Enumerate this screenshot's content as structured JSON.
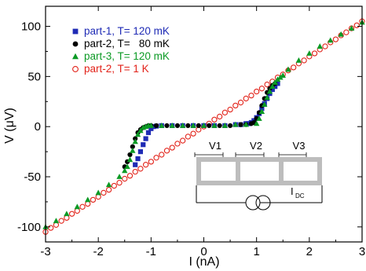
{
  "chart_data": {
    "type": "scatter",
    "title": "",
    "xlabel": "I (nA)",
    "ylabel": "V (μV)",
    "xlim": [
      -3,
      3
    ],
    "ylim": [
      -115,
      120
    ],
    "xticks": [
      -3,
      -2,
      -1,
      0,
      1,
      2,
      3
    ],
    "yticks": [
      -100,
      -50,
      0,
      50,
      100
    ],
    "xtick_labels": [
      "-3",
      "-2",
      "-1",
      "0",
      "1",
      "2",
      "3"
    ],
    "ytick_labels": [
      "-100",
      "-50",
      "0",
      "50",
      "100"
    ],
    "grid": false,
    "legend_position": "top-left",
    "series": [
      {
        "name": "part-1, T= 120 mK",
        "marker": "square",
        "color": "#1f2bb5",
        "x": [
          -1.3,
          -1.25,
          -1.2,
          -1.15,
          -1.1,
          -1.05,
          -1.0,
          -0.95,
          -0.9,
          -0.8,
          -0.6,
          -0.4,
          -0.2,
          0.0,
          0.2,
          0.4,
          0.6,
          0.7,
          0.8,
          0.85,
          0.9,
          0.95,
          1.0,
          1.05,
          1.1,
          1.15,
          1.2,
          1.25,
          1.3,
          1.35,
          1.4
        ],
        "y": [
          -38,
          -32,
          -25,
          -18,
          -12,
          -6,
          -2,
          0,
          0.5,
          1,
          1,
          1,
          1,
          1,
          1,
          1,
          2,
          2,
          3,
          3,
          4,
          6,
          9,
          13,
          18,
          23,
          28,
          33,
          37,
          40,
          43
        ]
      },
      {
        "name": "part-2, T=   80 mK",
        "marker": "circle",
        "color": "#000000",
        "x": [
          -1.5,
          -1.45,
          -1.4,
          -1.35,
          -1.3,
          -1.25,
          -1.2,
          -1.15,
          -1.1,
          -1.05,
          -1.0,
          -0.9,
          -0.7,
          -0.5,
          -0.3,
          -0.1,
          0.1,
          0.3,
          0.5,
          0.7,
          0.8,
          0.9,
          0.95,
          1.0,
          1.05,
          1.1,
          1.15,
          1.2,
          1.25,
          1.3,
          1.35
        ],
        "y": [
          -40,
          -35,
          -28,
          -20,
          -12,
          -6,
          -3,
          -1,
          0,
          1,
          1,
          1,
          1,
          1,
          1,
          1,
          1,
          1,
          1,
          2,
          2,
          3,
          4,
          8,
          14,
          21,
          28,
          34,
          38,
          41,
          43
        ]
      },
      {
        "name": "part-3, T= 120 mK",
        "marker": "triangle",
        "color": "#0c9a25",
        "x": [
          -3.0,
          -2.8,
          -2.6,
          -2.4,
          -2.2,
          -2.0,
          -1.8,
          -1.6,
          -1.5,
          -1.45,
          -1.4,
          -1.35,
          -1.3,
          -1.25,
          -1.2,
          -1.15,
          -1.1,
          -1.05,
          -1.0,
          -0.8,
          -0.6,
          -0.4,
          -0.2,
          0.0,
          0.2,
          0.4,
          0.6,
          0.8,
          1.0,
          1.05,
          1.1,
          1.15,
          1.2,
          1.25,
          1.3,
          1.35,
          1.4,
          1.45,
          1.5,
          1.6,
          1.8,
          2.0,
          2.2,
          2.4,
          2.6,
          2.8,
          3.0
        ],
        "y": [
          -100,
          -94,
          -87,
          -80,
          -73,
          -66,
          -58,
          -50,
          -44,
          -40,
          -33,
          -24,
          -15,
          -8,
          -4,
          -1,
          0,
          1,
          1,
          1,
          1,
          1,
          1,
          1,
          1,
          1,
          2,
          2,
          3,
          8,
          15,
          22,
          29,
          35,
          40,
          44,
          47,
          49,
          51,
          57,
          66,
          73,
          80,
          86,
          92,
          98,
          104
        ]
      },
      {
        "name": "part-2, T= 1 K",
        "marker": "open-circle",
        "color": "#e2231a",
        "x": [
          -3.0,
          -2.9,
          -2.8,
          -2.7,
          -2.6,
          -2.5,
          -2.4,
          -2.3,
          -2.2,
          -2.1,
          -2.0,
          -1.9,
          -1.8,
          -1.7,
          -1.6,
          -1.5,
          -1.4,
          -1.3,
          -1.2,
          -1.1,
          -1.0,
          -0.9,
          -0.8,
          -0.7,
          -0.6,
          -0.5,
          -0.4,
          -0.3,
          -0.2,
          -0.1,
          0.0,
          0.1,
          0.2,
          0.3,
          0.4,
          0.5,
          0.6,
          0.7,
          0.8,
          0.9,
          1.0,
          1.1,
          1.2,
          1.3,
          1.4,
          1.5,
          1.6,
          1.7,
          1.8,
          1.9,
          2.0,
          2.1,
          2.2,
          2.3,
          2.4,
          2.5,
          2.6,
          2.7,
          2.8,
          2.9,
          3.0
        ],
        "y": [
          -105,
          -101,
          -98,
          -94,
          -91,
          -87,
          -84,
          -80,
          -77,
          -73,
          -70,
          -66,
          -63,
          -59,
          -56,
          -52,
          -49,
          -45,
          -42,
          -38,
          -35,
          -31,
          -28,
          -24,
          -21,
          -17,
          -14,
          -10,
          -7,
          -3,
          0,
          3,
          7,
          10,
          14,
          17,
          21,
          24,
          28,
          31,
          35,
          38,
          42,
          45,
          49,
          52,
          56,
          59,
          63,
          66,
          70,
          73,
          77,
          80,
          84,
          87,
          91,
          94,
          98,
          101,
          105
        ]
      }
    ]
  },
  "inset": {
    "labels": [
      "V1",
      "V2",
      "V3"
    ],
    "current_label": "I",
    "current_sub": "DC"
  }
}
